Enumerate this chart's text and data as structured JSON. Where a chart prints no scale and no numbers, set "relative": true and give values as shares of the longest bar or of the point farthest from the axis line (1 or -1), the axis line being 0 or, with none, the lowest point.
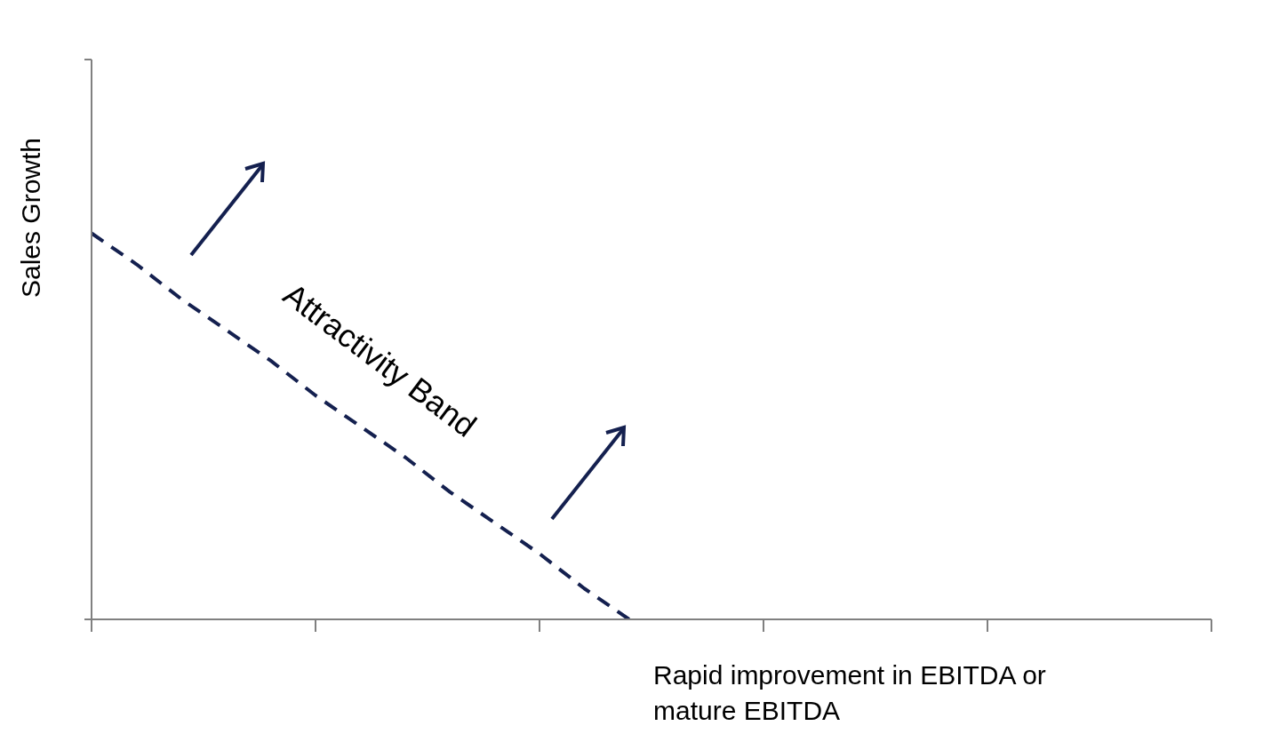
{
  "chart_data": {
    "type": "line",
    "xlabel": "Rapid improvement in EBITDA or mature EBITDA",
    "ylabel": "Sales Growth",
    "annotations": [
      "Attractivity Band"
    ],
    "relative": true,
    "categories": [
      null,
      null,
      null,
      null,
      null,
      null,
      null,
      null,
      null,
      null,
      null,
      null,
      null,
      null,
      null,
      null,
      null,
      null,
      null,
      null,
      null,
      null,
      null,
      null,
      null,
      null
    ],
    "line_style": "dashed",
    "marker": "none",
    "series": [
      {
        "color": "#14204f",
        "values": [
          1,
          0.92,
          0.83,
          0.75,
          0.67,
          0.58,
          0.5,
          0.42,
          0.33,
          0.25,
          0.17,
          0.08,
          0,
          null,
          null,
          null,
          null,
          null,
          null,
          null,
          null,
          null,
          null,
          null,
          null,
          null
        ]
      }
    ]
  }
}
